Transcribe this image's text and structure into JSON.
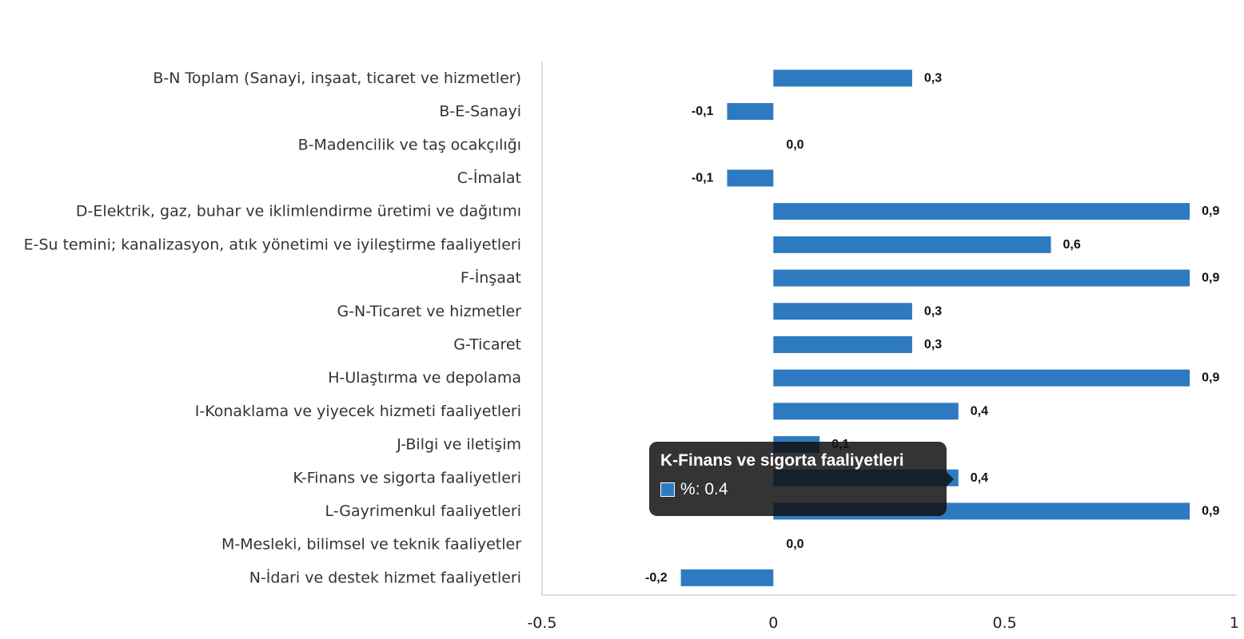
{
  "chart_data": {
    "type": "bar",
    "orientation": "horizontal",
    "categories": [
      "B-N Toplam (Sanayi, inşaat, ticaret ve hizmetler)",
      "B-E-Sanayi",
      "B-Madencilik ve taş ocakçılığı",
      "C-İmalat",
      "D-Elektrik, gaz, buhar ve iklimlendirme üretimi ve dağıtımı",
      "E-Su temini; kanalizasyon, atık yönetimi ve iyileştirme faaliyetleri",
      "F-İnşaat",
      "G-N-Ticaret ve hizmetler",
      "G-Ticaret",
      "H-Ulaştırma ve depolama",
      "I-Konaklama ve yiyecek hizmeti faaliyetleri",
      "J-Bilgi ve iletişim",
      "K-Finans ve sigorta faaliyetleri",
      "L-Gayrimenkul faaliyetleri",
      "M-Mesleki, bilimsel ve teknik faaliyetler",
      "N-İdari ve destek hizmet faaliyetleri"
    ],
    "series": [
      {
        "name": "%",
        "color": "#2e7ac0",
        "values": [
          0.3,
          -0.1,
          0.0,
          -0.1,
          0.9,
          0.6,
          0.9,
          0.3,
          0.3,
          0.9,
          0.4,
          0.1,
          0.4,
          0.9,
          0.0,
          -0.2
        ],
        "labels": [
          "0,3",
          "-0,1",
          "0,0",
          "-0,1",
          "0,9",
          "0,6",
          "0,9",
          "0,3",
          "0,3",
          "0,9",
          "0,4",
          "0,1",
          "0,4",
          "0,9",
          "0,0",
          "-0,2"
        ]
      }
    ],
    "xlim": [
      -0.5,
      1
    ],
    "xticks": [
      -0.5,
      0,
      0.5,
      1
    ],
    "xtick_labels": [
      "-0.5",
      "0",
      "0.5",
      "1"
    ],
    "grid": false,
    "legend": "none"
  },
  "tooltip": {
    "title": "K-Finans ve sigorta faaliyetleri",
    "series_name": "%",
    "value_text": ": 0.4"
  }
}
